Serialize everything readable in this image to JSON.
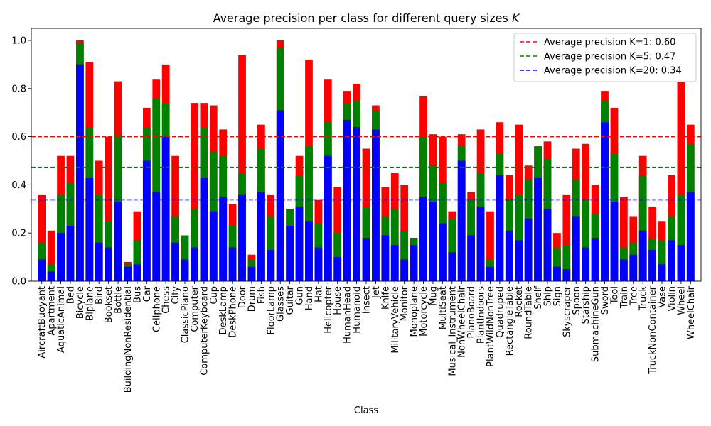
{
  "chart_data": {
    "type": "bar",
    "title": "Average precision per class for different query sizes K",
    "title_main": "Average precision per class for different query sizes ",
    "title_var": "K",
    "xlabel": "Class",
    "ylabel": "",
    "ylim": [
      0,
      1.05
    ],
    "yticks": [
      0.0,
      0.2,
      0.4,
      0.6,
      0.8,
      1.0
    ],
    "ytick_labels": [
      "0.0",
      "0.2",
      "0.4",
      "0.6",
      "0.8",
      "1.0"
    ],
    "grid": false,
    "legend_position": "top-right",
    "categories": [
      "AircraftBuoyant",
      "Apartment",
      "AquaticAnimal",
      "Bed",
      "Bicycle",
      "Biplane",
      "Bird",
      "Bookset",
      "Bottle",
      "BuildingNonResidential",
      "Bus",
      "Car",
      "Cellphone",
      "Chess",
      "City",
      "ClassicPiano",
      "Computer",
      "ComputerKeyboard",
      "Cup",
      "DeskLamp",
      "DeskPhone",
      "Door",
      "Drum",
      "Fish",
      "FloorLamp",
      "Glasses",
      "Guitar",
      "Gun",
      "Hand",
      "Hat",
      "Helicopter",
      "House",
      "HumanHead",
      "Humanoid",
      "Insect",
      "Jet",
      "Knife",
      "MilitaryVehicle",
      "Monitor",
      "Monoplane",
      "Motorcycle",
      "Mug",
      "MultiSeat",
      "Musical_Instrument",
      "NonWheelChair",
      "PianoBoard",
      "PlantIndoors",
      "PlantWildNonTree",
      "Quadruped",
      "RectangleTable",
      "Rocket",
      "RoundTable",
      "Shelf",
      "Ship",
      "Sign",
      "Skyscraper",
      "Spoon",
      "Starship",
      "SubmachineGun",
      "Sword",
      "Tool",
      "Train",
      "Tree",
      "Truck",
      "TruckNonContainer",
      "Vase",
      "Violin",
      "Wheel",
      "WheelChair"
    ],
    "series": [
      {
        "name": "K=1",
        "color": "#ff0000",
        "values": [
          0.36,
          0.21,
          0.52,
          0.52,
          1.0,
          0.91,
          0.5,
          0.6,
          0.83,
          0.08,
          0.29,
          0.72,
          0.84,
          0.9,
          0.52,
          0.19,
          0.74,
          0.74,
          0.73,
          0.63,
          0.32,
          0.94,
          0.11,
          0.65,
          0.36,
          1.0,
          0.3,
          0.52,
          0.92,
          0.34,
          0.84,
          0.39,
          0.79,
          0.82,
          0.55,
          0.73,
          0.39,
          0.45,
          0.4,
          0.18,
          0.77,
          0.61,
          0.6,
          0.29,
          0.61,
          0.37,
          0.63,
          0.29,
          0.66,
          0.44,
          0.65,
          0.48,
          0.56,
          0.58,
          0.2,
          0.36,
          0.55,
          0.57,
          0.4,
          0.79,
          0.72,
          0.35,
          0.27,
          0.52,
          0.31,
          0.25,
          0.44,
          0.83,
          0.65
        ]
      },
      {
        "name": "K=5",
        "color": "#008000",
        "values": [
          0.16,
          0.07,
          0.36,
          0.41,
          0.99,
          0.64,
          0.36,
          0.25,
          0.61,
          0.07,
          0.17,
          0.64,
          0.76,
          0.74,
          0.27,
          0.19,
          0.3,
          0.64,
          0.54,
          0.52,
          0.23,
          0.45,
          0.09,
          0.55,
          0.27,
          0.97,
          0.3,
          0.44,
          0.56,
          0.24,
          0.66,
          0.2,
          0.74,
          0.75,
          0.31,
          0.71,
          0.27,
          0.3,
          0.21,
          0.18,
          0.6,
          0.48,
          0.41,
          0.26,
          0.56,
          0.34,
          0.45,
          0.09,
          0.53,
          0.34,
          0.36,
          0.42,
          0.56,
          0.51,
          0.14,
          0.15,
          0.42,
          0.34,
          0.28,
          0.75,
          0.53,
          0.14,
          0.16,
          0.44,
          0.18,
          0.17,
          0.27,
          0.36,
          0.57
        ]
      },
      {
        "name": "K=20",
        "color": "#0000ff",
        "values": [
          0.09,
          0.04,
          0.2,
          0.23,
          0.9,
          0.43,
          0.16,
          0.14,
          0.33,
          0.06,
          0.07,
          0.5,
          0.37,
          0.6,
          0.16,
          0.09,
          0.14,
          0.43,
          0.29,
          0.35,
          0.14,
          0.36,
          0.06,
          0.37,
          0.13,
          0.71,
          0.23,
          0.31,
          0.25,
          0.14,
          0.52,
          0.1,
          0.67,
          0.64,
          0.18,
          0.63,
          0.19,
          0.15,
          0.09,
          0.15,
          0.35,
          0.33,
          0.24,
          0.12,
          0.5,
          0.19,
          0.31,
          0.06,
          0.44,
          0.21,
          0.17,
          0.26,
          0.43,
          0.3,
          0.06,
          0.05,
          0.27,
          0.14,
          0.18,
          0.66,
          0.33,
          0.09,
          0.11,
          0.21,
          0.13,
          0.07,
          0.17,
          0.15,
          0.37
        ]
      }
    ],
    "reference_lines": [
      {
        "label": "Average precision K=1: 0.60",
        "value": 0.6,
        "color": "#ff0000"
      },
      {
        "label": "Average precision K=5: 0.47",
        "value": 0.473,
        "color": "#008000"
      },
      {
        "label": "Average precision K=20: 0.34",
        "value": 0.338,
        "color": "#0000ff"
      }
    ]
  }
}
